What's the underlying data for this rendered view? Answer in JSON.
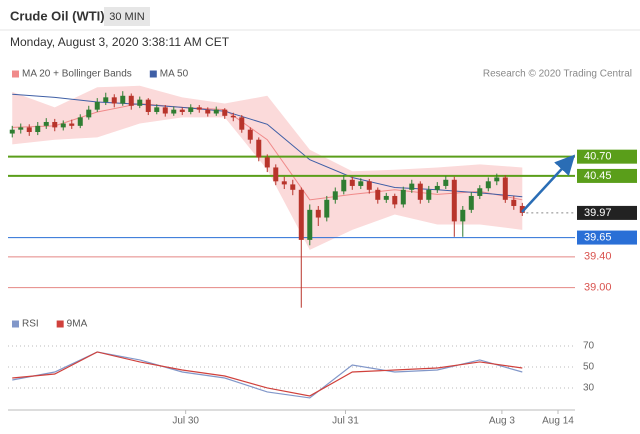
{
  "header": {
    "title": "Crude Oil (WTI)",
    "interval": "30 MIN",
    "datetime": "Monday, August 3, 2020 3:38:11 AM CET"
  },
  "chart_data": [
    {
      "type": "candlestick",
      "credit": "Research © 2020 Trading Central",
      "open": [
        41.0,
        41.05,
        41.08,
        41.02,
        41.1,
        41.15,
        41.08,
        41.13,
        41.1,
        41.21,
        41.31,
        41.41,
        41.47,
        41.39,
        41.49,
        41.36,
        41.44,
        41.28,
        41.34,
        41.26,
        41.31,
        41.28,
        41.34,
        41.31,
        41.26,
        41.31,
        41.23,
        41.21,
        41.05,
        40.92,
        40.69,
        40.56,
        40.38,
        40.34,
        40.27,
        39.62,
        40.01,
        39.91,
        40.14,
        40.25,
        40.4,
        40.32,
        40.38,
        40.27,
        40.14,
        40.19,
        40.08,
        40.27,
        40.35,
        40.14,
        40.27,
        40.32,
        40.4,
        39.86,
        40.01,
        40.19,
        40.29,
        40.38,
        40.43,
        40.14,
        40.06
      ],
      "high": [
        41.1,
        41.13,
        41.12,
        41.15,
        41.2,
        41.19,
        41.17,
        41.18,
        41.25,
        41.36,
        41.46,
        41.53,
        41.51,
        41.55,
        41.52,
        41.48,
        41.46,
        41.38,
        41.37,
        41.35,
        41.34,
        41.38,
        41.37,
        41.34,
        41.35,
        41.33,
        41.27,
        41.24,
        41.08,
        40.95,
        40.73,
        40.6,
        40.44,
        40.4,
        40.3,
        40.08,
        40.06,
        40.19,
        40.3,
        40.46,
        40.44,
        40.42,
        40.41,
        40.3,
        40.23,
        40.22,
        40.31,
        40.4,
        40.38,
        40.32,
        40.37,
        40.45,
        40.44,
        40.06,
        40.24,
        40.33,
        40.43,
        40.48,
        40.46,
        40.19,
        40.1
      ],
      "low": [
        40.95,
        41.0,
        40.97,
        40.98,
        41.06,
        41.03,
        41.04,
        41.06,
        41.07,
        41.18,
        41.28,
        41.37,
        41.34,
        41.36,
        41.31,
        41.33,
        41.24,
        41.25,
        41.22,
        41.23,
        41.24,
        41.25,
        41.27,
        41.22,
        41.23,
        41.19,
        41.16,
        41.01,
        40.87,
        40.64,
        40.5,
        40.33,
        40.28,
        40.2,
        38.74,
        39.55,
        39.8,
        39.86,
        40.09,
        40.21,
        40.27,
        40.28,
        40.22,
        40.09,
        40.1,
        40.03,
        40.04,
        40.23,
        40.09,
        40.1,
        40.23,
        40.28,
        39.66,
        39.66,
        39.97,
        40.15,
        40.25,
        40.33,
        40.1,
        40.01,
        39.93
      ],
      "close": [
        41.05,
        41.08,
        41.02,
        41.1,
        41.15,
        41.08,
        41.13,
        41.1,
        41.21,
        41.31,
        41.41,
        41.47,
        41.39,
        41.49,
        41.36,
        41.44,
        41.28,
        41.34,
        41.26,
        41.31,
        41.28,
        41.34,
        41.31,
        41.26,
        41.31,
        41.23,
        41.21,
        41.05,
        40.92,
        40.69,
        40.56,
        40.38,
        40.34,
        40.27,
        39.62,
        40.01,
        39.91,
        40.14,
        40.25,
        40.4,
        40.32,
        40.38,
        40.27,
        40.14,
        40.19,
        40.08,
        40.27,
        40.35,
        40.14,
        40.27,
        40.32,
        40.4,
        39.86,
        40.01,
        40.19,
        40.29,
        40.38,
        40.43,
        40.14,
        40.06,
        39.97
      ],
      "up_color": "#2f7d32",
      "down_color": "#b8342b",
      "series": [
        {
          "name": "MA 20 + Bollinger Bands",
          "color": "#f08a8a",
          "band_color": "#fbdada",
          "x": [
            0,
            5,
            10,
            15,
            20,
            25,
            30,
            35,
            40,
            45,
            50,
            55,
            60
          ],
          "values": [
            41.08,
            41.1,
            41.28,
            41.39,
            41.34,
            41.31,
            40.92,
            40.14,
            40.21,
            40.27,
            40.21,
            40.25,
            40.14
          ],
          "upper": [
            41.54,
            41.34,
            41.6,
            41.62,
            41.47,
            41.39,
            41.49,
            40.79,
            40.51,
            40.53,
            40.56,
            40.6,
            40.56
          ],
          "lower": [
            40.86,
            40.92,
            40.95,
            41.13,
            41.21,
            41.21,
            40.53,
            39.49,
            39.75,
            39.95,
            39.82,
            39.82,
            39.75
          ]
        },
        {
          "name": "MA 50",
          "color": "#3f5fa6",
          "x": [
            0,
            5,
            10,
            15,
            20,
            25,
            30,
            35,
            40,
            45,
            50,
            55,
            60
          ],
          "values": [
            41.51,
            41.47,
            41.41,
            41.38,
            41.34,
            41.29,
            41.12,
            40.66,
            40.43,
            40.3,
            40.27,
            40.23,
            40.18
          ]
        }
      ],
      "levels": [
        {
          "value": 40.7,
          "label": "40.70",
          "color": "#5a9e1a",
          "style": "box",
          "line": "solid"
        },
        {
          "value": 40.45,
          "label": "40.45",
          "color": "#5a9e1a",
          "style": "box",
          "line": "solid"
        },
        {
          "value": 39.97,
          "label": "39.97",
          "color": "#222222",
          "style": "box",
          "line": "dotted"
        },
        {
          "value": 39.65,
          "label": "39.65",
          "color": "#2a6fd6",
          "style": "box",
          "line": "solid"
        },
        {
          "value": 39.4,
          "label": "39.40",
          "color": "#d9534f",
          "style": "text",
          "line": "solid"
        },
        {
          "value": 39.0,
          "label": "39.00",
          "color": "#d9534f",
          "style": "text",
          "line": "solid"
        }
      ],
      "xlim": [
        -0.5,
        66.2
      ],
      "ylim": [
        38.71,
        41.63
      ]
    },
    {
      "type": "line",
      "series": [
        {
          "name": "RSI",
          "color": "#8197c9",
          "x": [
            0,
            5,
            10,
            15,
            20,
            25,
            30,
            35,
            40,
            45,
            50,
            55,
            60
          ],
          "values": [
            37.6,
            45.2,
            64.3,
            56.7,
            45.2,
            39.5,
            26.2,
            20.5,
            51.9,
            45.2,
            47.1,
            56.7,
            45.2
          ]
        },
        {
          "name": "9MA",
          "color": "#d0413c",
          "x": [
            0,
            5,
            10,
            15,
            20,
            25,
            30,
            35,
            40,
            45,
            50,
            55,
            60
          ],
          "values": [
            39.5,
            43.3,
            64.3,
            54.8,
            47.1,
            41.4,
            30.0,
            22.4,
            45.2,
            47.1,
            49.0,
            54.8,
            49.0
          ]
        }
      ],
      "xlim": [
        -0.5,
        66.2
      ],
      "ylim": [
        9,
        90
      ],
      "yticks": [
        30,
        50,
        70
      ],
      "grid": true,
      "xticks": [
        {
          "value": 20.4,
          "label": "Jul 30"
        },
        {
          "value": 39.2,
          "label": "Jul 31"
        },
        {
          "value": 57.6,
          "label": "Aug 3"
        },
        {
          "value": 64.2,
          "label": "Aug 14"
        }
      ]
    }
  ]
}
